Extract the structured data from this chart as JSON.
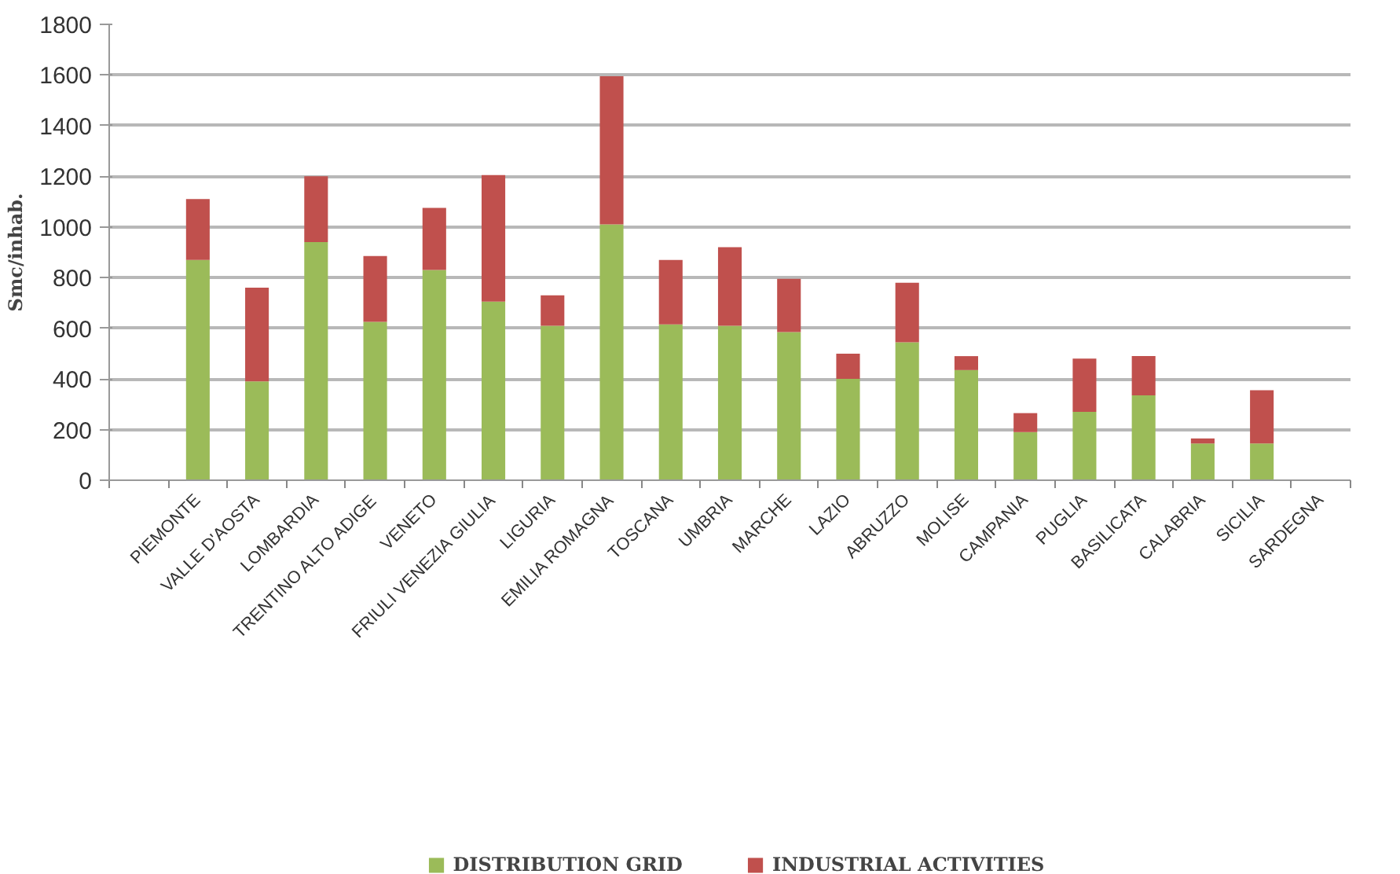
{
  "chart_data": {
    "type": "bar",
    "stacked": true,
    "ylabel": "Smc/inhab.",
    "categories": [
      null,
      "PIEMONTE",
      "VALLE D'AOSTA",
      "LOMBARDIA",
      "TRENTINO ALTO ADIGE",
      "VENETO",
      "FRIULI VENEZIA GIULIA",
      "LIGURIA",
      "EMILIA ROMAGNA",
      "TOSCANA",
      "UMBRIA",
      "MARCHE",
      "LAZIO",
      "ABRUZZO",
      "MOLISE",
      "CAMPANIA",
      "PUGLIA",
      "BASILICATA",
      "CALABRIA",
      "SICILIA",
      "SARDEGNA"
    ],
    "series": [
      {
        "name": "DISTRIBUTION GRID",
        "color": "#9bbb59",
        "values": [
          null,
          870,
          390,
          940,
          625,
          830,
          705,
          610,
          1010,
          615,
          610,
          585,
          400,
          545,
          435,
          190,
          270,
          335,
          145,
          145,
          null
        ]
      },
      {
        "name": "INDUSTRIAL ACTIVITIES",
        "color": "#c0504d",
        "values": [
          null,
          240,
          370,
          260,
          260,
          245,
          500,
          120,
          585,
          255,
          310,
          210,
          100,
          235,
          55,
          75,
          210,
          155,
          20,
          210,
          null
        ]
      }
    ],
    "ylim": [
      0,
      1800
    ],
    "yticks": [
      0,
      200,
      400,
      600,
      800,
      1000,
      1200,
      1400,
      1600,
      1800
    ],
    "grid": "y",
    "legend": "bottom"
  }
}
